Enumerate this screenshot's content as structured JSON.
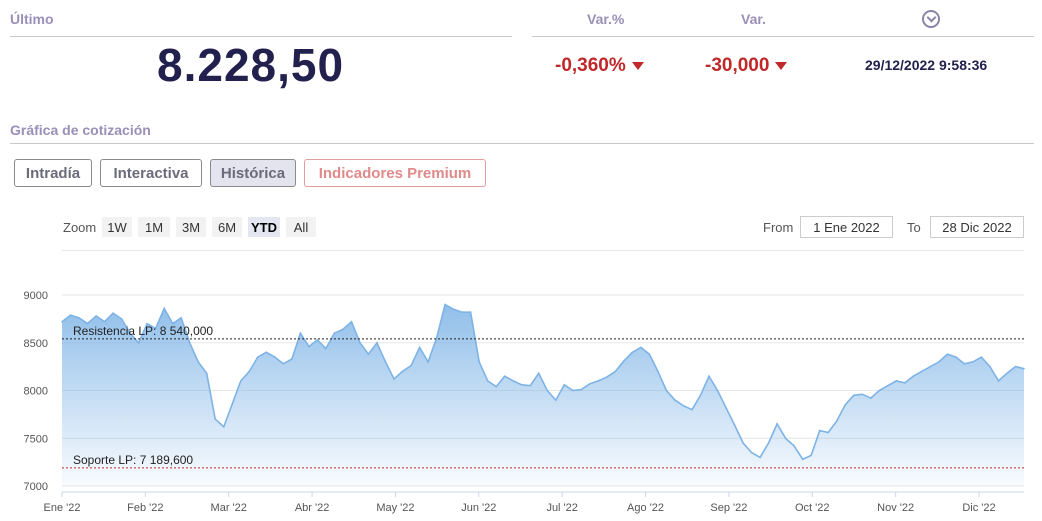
{
  "header": {
    "last_label": "Último",
    "last_value": "8.228,50",
    "varpct_label": "Var.%",
    "var_label": "Var.",
    "varpct_value": "-0,360%",
    "var_value": "-30,000",
    "timestamp": "29/12/2022 9:58:36",
    "clock_icon": "chevron-circle-icon"
  },
  "section_title": "Gráfica de cotización",
  "tabs": [
    {
      "label": "Intradía",
      "active": false
    },
    {
      "label": "Interactiva",
      "active": false
    },
    {
      "label": "Histórica",
      "active": true
    },
    {
      "label": "Indicadores Premium",
      "active": false
    }
  ],
  "zoom": {
    "label": "Zoom",
    "buttons": [
      "1W",
      "1M",
      "3M",
      "6M",
      "YTD",
      "All"
    ],
    "active": "YTD"
  },
  "range": {
    "from_label": "From",
    "from_value": "1 Ene 2022",
    "to_label": "To",
    "to_value": "28 Dic 2022"
  },
  "colors": {
    "accent": "#22204d",
    "negative": "#c0282a",
    "line": "#7db3e6",
    "resistance": "#222222",
    "support": "#c0282a"
  },
  "chart_data": {
    "type": "area",
    "title": "",
    "xlabel": "",
    "ylabel": "",
    "ylim": [
      7000,
      9000
    ],
    "yticks": [
      7000,
      7500,
      8000,
      8500,
      9000
    ],
    "x_tick_labels": [
      "Ene '22",
      "Feb '22",
      "Mar '22",
      "Abr '22",
      "May '22",
      "Jun '22",
      "Jul '22",
      "Ago '22",
      "Sep '22",
      "Oct '22",
      "Nov '22",
      "Dic '22"
    ],
    "grid": true,
    "series": [
      {
        "values": [
          8720,
          8790,
          8760,
          8700,
          8780,
          8720,
          8810,
          8750,
          8600,
          8500,
          8700,
          8650,
          8860,
          8700,
          8760,
          8500,
          8300,
          8180,
          7700,
          7620,
          7860,
          8100,
          8200,
          8350,
          8400,
          8350,
          8280,
          8330,
          8600,
          8460,
          8530,
          8440,
          8600,
          8640,
          8720,
          8500,
          8380,
          8500,
          8300,
          8120,
          8200,
          8260,
          8450,
          8300,
          8550,
          8900,
          8850,
          8820,
          8820,
          8300,
          8100,
          8040,
          8150,
          8100,
          8060,
          8050,
          8180,
          8000,
          7900,
          8060,
          8000,
          8010,
          8070,
          8100,
          8140,
          8200,
          8310,
          8400,
          8450,
          8380,
          8200,
          8000,
          7900,
          7840,
          7800,
          7950,
          8150,
          8000,
          7820,
          7640,
          7450,
          7350,
          7300,
          7450,
          7650,
          7500,
          7420,
          7280,
          7320,
          7580,
          7560,
          7680,
          7850,
          7950,
          7960,
          7920,
          8000,
          8050,
          8100,
          8080,
          8150,
          8200,
          8250,
          8300,
          8380,
          8350,
          8280,
          8300,
          8350,
          8250,
          8100,
          8180,
          8250,
          8228
        ]
      }
    ],
    "annotations": [
      {
        "label": "Resistencia LP: 8 540,000",
        "value": 8540
      },
      {
        "label": "Soporte LP: 7 189,600",
        "value": 7189.6
      }
    ]
  }
}
